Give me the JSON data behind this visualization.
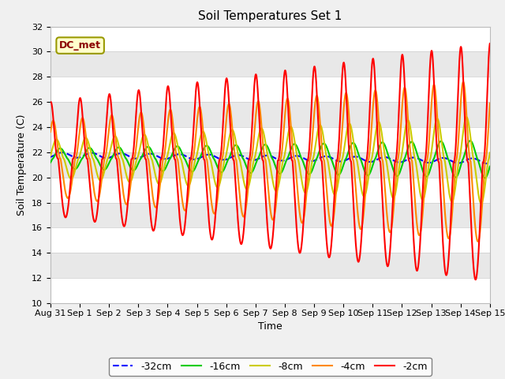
{
  "title": "Soil Temperatures Set 1",
  "xlabel": "Time",
  "ylabel": "Soil Temperature (C)",
  "ylim": [
    10,
    32
  ],
  "xlim": [
    0,
    15
  ],
  "background_color": "#f0f0f0",
  "plot_bg_color": "#f0f0f0",
  "annotation_text": "DC_met",
  "annotation_bg": "#ffffcc",
  "annotation_border": "#999900",
  "legend_labels": [
    "-32cm",
    "-16cm",
    "-8cm",
    "-4cm",
    "-2cm"
  ],
  "line_colors": [
    "#0000ff",
    "#00cc00",
    "#cccc00",
    "#ff8800",
    "#ff0000"
  ],
  "line_styles": [
    "--",
    "-",
    "-",
    "-",
    "-"
  ],
  "line_widths": [
    1.5,
    1.5,
    1.5,
    1.5,
    1.5
  ],
  "xtick_labels": [
    "Aug 31",
    "Sep 1",
    "Sep 2",
    "Sep 3",
    "Sep 4",
    "Sep 5",
    "Sep 6",
    "Sep 7",
    "Sep 8",
    "Sep 9",
    "Sep 10",
    "Sep 11",
    "Sep 12",
    "Sep 13",
    "Sep 14",
    "Sep 15"
  ],
  "xtick_positions": [
    0,
    1,
    2,
    3,
    4,
    5,
    6,
    7,
    8,
    9,
    10,
    11,
    12,
    13,
    14,
    15
  ]
}
